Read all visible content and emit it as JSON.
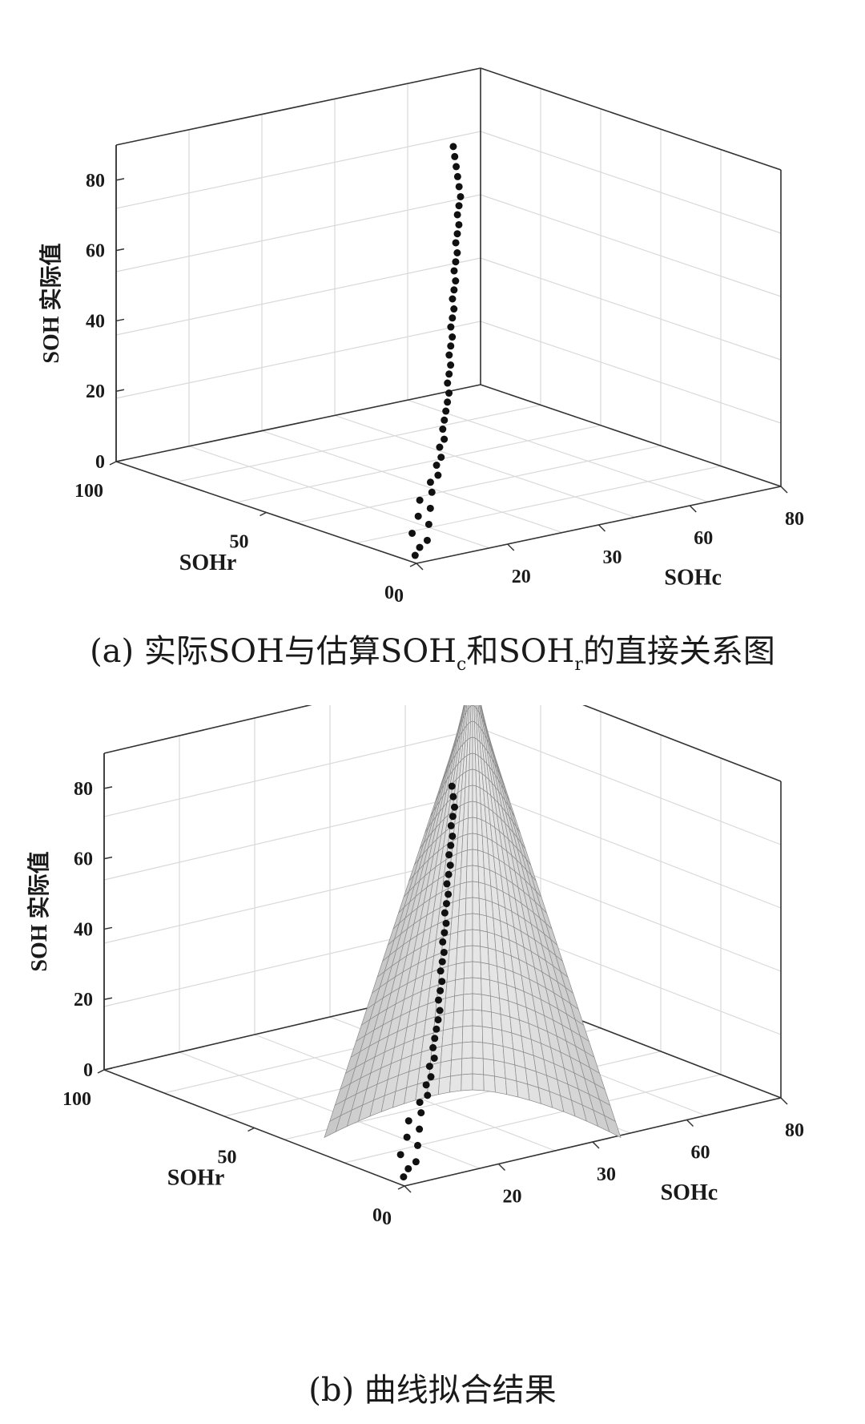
{
  "chart_data": [
    {
      "type": "scatter",
      "panel": "a",
      "caption": {
        "prefix": "(a)  实际SOH与估算SOH",
        "sub1": "c",
        "mid": "和SOH",
        "sub2": "r",
        "suffix": "的直接关系图"
      },
      "zlabel": "SOH 实际值",
      "xlabel": "SOHc",
      "ylabel": "SOHr",
      "x_ticks": [
        "0",
        "20",
        "30",
        "60",
        "80"
      ],
      "y_ticks": [
        "0",
        "50",
        "100"
      ],
      "z_ticks": [
        "0",
        "20",
        "40",
        "60",
        "80"
      ],
      "grid": true,
      "series": [
        {
          "marker_color": "#111111",
          "points_xyz": [
            [
              3,
              5,
              0
            ],
            [
              4,
              5,
              2
            ],
            [
              5,
              4,
              4
            ],
            [
              3,
              6,
              6
            ],
            [
              6,
              5,
              8
            ],
            [
              5,
              7,
              10
            ],
            [
              7,
              6,
              12
            ],
            [
              6,
              8,
              14
            ],
            [
              8,
              7,
              16
            ],
            [
              9,
              9,
              18
            ],
            [
              10,
              8,
              20
            ],
            [
              11,
              10,
              22
            ],
            [
              12,
              10,
              24
            ],
            [
              13,
              12,
              26
            ],
            [
              14,
              12,
              28
            ],
            [
              15,
              14,
              30
            ],
            [
              16,
              15,
              32
            ],
            [
              17,
              16,
              34
            ],
            [
              18,
              17,
              36
            ],
            [
              19,
              18,
              38
            ],
            [
              20,
              20,
              40
            ],
            [
              21,
              21,
              42
            ],
            [
              22,
              22,
              44
            ],
            [
              23,
              24,
              46
            ],
            [
              24,
              25,
              48
            ],
            [
              25,
              26,
              50
            ],
            [
              26,
              28,
              52
            ],
            [
              27,
              29,
              54
            ],
            [
              28,
              30,
              56
            ],
            [
              29,
              32,
              58
            ],
            [
              30,
              33,
              60
            ],
            [
              31,
              34,
              62
            ],
            [
              32,
              36,
              64
            ],
            [
              33,
              37,
              66
            ],
            [
              34,
              38,
              68
            ],
            [
              35,
              40,
              70
            ],
            [
              36,
              41,
              72
            ],
            [
              37,
              42,
              74
            ],
            [
              38,
              44,
              76
            ],
            [
              39,
              45,
              78
            ],
            [
              40,
              46,
              80
            ],
            [
              41,
              48,
              82
            ],
            [
              42,
              50,
              84
            ],
            [
              43,
              52,
              86
            ],
            [
              44,
              54,
              88
            ],
            [
              45,
              56,
              90
            ]
          ]
        }
      ]
    },
    {
      "type": "scatter",
      "panel": "b",
      "caption": "(b)  曲线拟合结果",
      "zlabel": "SOH 实际值",
      "xlabel": "SOHc",
      "ylabel": "SOHr",
      "x_ticks": [
        "0",
        "20",
        "30",
        "60",
        "80"
      ],
      "y_ticks": [
        "0",
        "50",
        "100"
      ],
      "z_ticks": [
        "0",
        "20",
        "40",
        "60",
        "80"
      ],
      "grid": true,
      "surface_color": "#dcdcdc",
      "series": [
        {
          "marker_color": "#111111",
          "points_xyz": [
            [
              3,
              5,
              0
            ],
            [
              4,
              5,
              2
            ],
            [
              5,
              4,
              4
            ],
            [
              3,
              6,
              6
            ],
            [
              6,
              5,
              8
            ],
            [
              5,
              7,
              10
            ],
            [
              7,
              6,
              12
            ],
            [
              6,
              8,
              14
            ],
            [
              8,
              7,
              16
            ],
            [
              9,
              9,
              18
            ],
            [
              10,
              8,
              20
            ],
            [
              11,
              10,
              22
            ],
            [
              12,
              10,
              24
            ],
            [
              13,
              12,
              26
            ],
            [
              14,
              12,
              28
            ],
            [
              15,
              14,
              30
            ],
            [
              16,
              15,
              32
            ],
            [
              17,
              16,
              34
            ],
            [
              18,
              17,
              36
            ],
            [
              19,
              18,
              38
            ],
            [
              20,
              20,
              40
            ],
            [
              21,
              21,
              42
            ],
            [
              22,
              22,
              44
            ],
            [
              23,
              24,
              46
            ],
            [
              24,
              25,
              48
            ],
            [
              25,
              26,
              50
            ],
            [
              26,
              28,
              52
            ],
            [
              27,
              29,
              54
            ],
            [
              28,
              30,
              56
            ],
            [
              29,
              32,
              58
            ],
            [
              30,
              33,
              60
            ],
            [
              31,
              34,
              62
            ],
            [
              32,
              36,
              64
            ],
            [
              33,
              37,
              66
            ],
            [
              34,
              38,
              68
            ],
            [
              35,
              40,
              70
            ],
            [
              36,
              41,
              72
            ],
            [
              37,
              42,
              74
            ],
            [
              38,
              44,
              76
            ],
            [
              39,
              45,
              78
            ],
            [
              40,
              46,
              80
            ],
            [
              41,
              48,
              82
            ],
            [
              42,
              50,
              84
            ]
          ]
        }
      ]
    }
  ]
}
